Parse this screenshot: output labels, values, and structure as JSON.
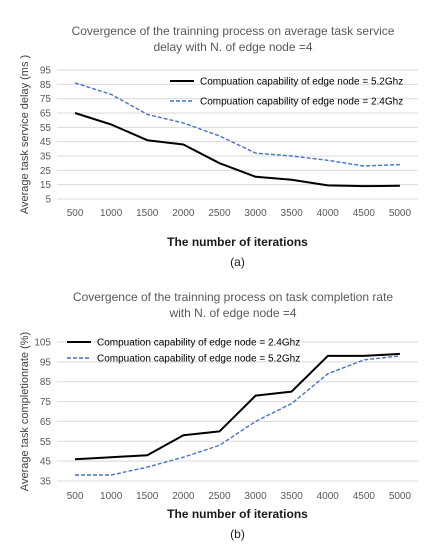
{
  "chart_data": [
    {
      "type": "line",
      "title_lines": [
        "Covergence of the trainning process on average task service",
        "delay with N. of edge node =4"
      ],
      "xlabel": "The number of iterations",
      "ylabel": "Average task  service delay (ms )",
      "subcaption": "(a)",
      "categories": [
        "500",
        "1000",
        "1500",
        "2000",
        "2500",
        "3000",
        "3500",
        "4000",
        "4500",
        "5000"
      ],
      "yticks": [
        "5",
        "15",
        "25",
        "35",
        "45",
        "55",
        "65",
        "75",
        "85",
        "95"
      ],
      "ylim": [
        5,
        95
      ],
      "grid": true,
      "legend_position": "top-right",
      "series": [
        {
          "name": "Compuation capability of edge node = 5.2Ghz",
          "style": "solid",
          "color": "#000000",
          "values": [
            65,
            57,
            46,
            43,
            30,
            20.5,
            18.5,
            14.5,
            14,
            14.2
          ]
        },
        {
          "name": "Compuation capability of edge node = 2.4Ghz",
          "style": "dashed",
          "color": "#4472C4",
          "values": [
            86,
            78,
            64,
            58,
            49,
            37,
            35,
            32,
            28,
            29
          ]
        }
      ]
    },
    {
      "type": "line",
      "title_lines": [
        "Covergence of the trainning process on task completion rate",
        "with N. of edge node =4"
      ],
      "xlabel": "The number of iterations",
      "ylabel": "Average  task  completionrate (%)",
      "subcaption": "(b)",
      "categories": [
        "500",
        "1000",
        "1500",
        "2000",
        "2500",
        "3000",
        "3500",
        "4000",
        "4500",
        "5000"
      ],
      "yticks": [
        "35",
        "45",
        "55",
        "65",
        "75",
        "85",
        "95",
        "105"
      ],
      "ylim": [
        35,
        105
      ],
      "grid": true,
      "legend_position": "top-left",
      "series": [
        {
          "name": "Compuation capability of edge node = 2.4Ghz",
          "style": "solid",
          "color": "#000000",
          "values": [
            46,
            47,
            48,
            58,
            60,
            78,
            80,
            98,
            98,
            99
          ]
        },
        {
          "name": "Compuation capability of edge node = 5.2Ghz",
          "style": "dashed",
          "color": "#4472C4",
          "values": [
            38,
            38,
            42,
            47,
            53,
            65,
            74,
            89,
            96,
            98
          ]
        }
      ]
    }
  ]
}
